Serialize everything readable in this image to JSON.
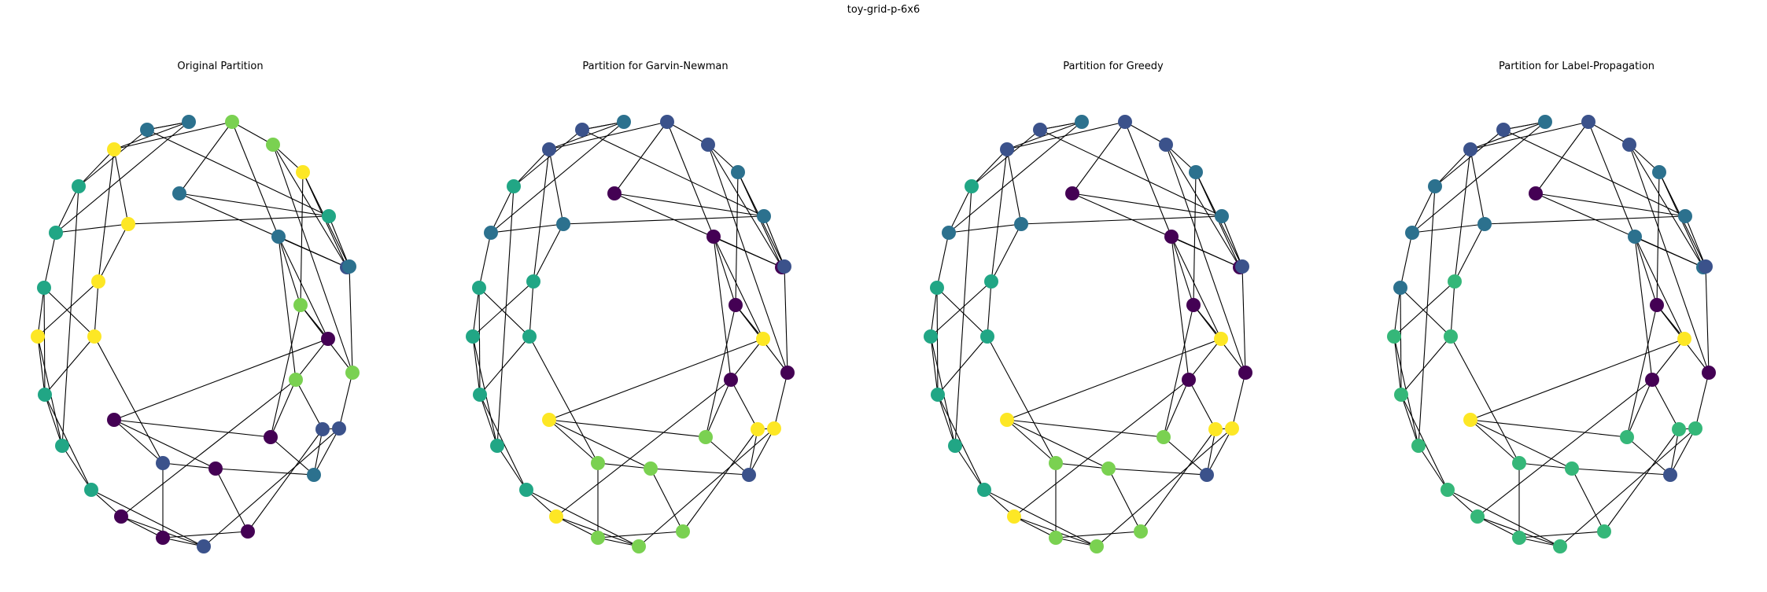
{
  "figure": {
    "title": "toy-grid-p-6x6"
  },
  "colors": {
    "purple": "#440154",
    "indigo": "#3b528b",
    "blue": "#2c718e",
    "teal": "#21a685",
    "mint": "#35b779",
    "lime": "#7ad151",
    "yellow": "#fde725",
    "edge": "#000000"
  },
  "panels": [
    {
      "title": "Original Partition",
      "node_colors": [
        "yellow",
        "yellow",
        "teal",
        "blue",
        "teal",
        "blue",
        "indigo",
        "teal",
        "lime",
        "lime",
        "teal",
        "lime",
        "yellow",
        "yellow",
        "blue",
        "purple",
        "blue",
        "lime",
        "purple",
        "indigo",
        "yellow",
        "teal",
        "indigo",
        "purple",
        "indigo",
        "purple",
        "indigo",
        "purple",
        "yellow",
        "blue",
        "purple",
        "teal",
        "teal",
        "purple",
        "blue",
        "lime"
      ]
    },
    {
      "title": "Partition for Garvin-Newman",
      "node_colors": [
        "indigo",
        "blue",
        "teal",
        "indigo",
        "blue",
        "purple",
        "purple",
        "teal",
        "indigo",
        "indigo",
        "blue",
        "purple",
        "teal",
        "blue",
        "indigo",
        "yellow",
        "purple",
        "purple",
        "yellow",
        "yellow",
        "teal",
        "teal",
        "yellow",
        "lime",
        "lime",
        "lime",
        "lime",
        "lime",
        "teal",
        "blue",
        "lime",
        "teal",
        "teal",
        "yellow",
        "indigo",
        "purple"
      ]
    },
    {
      "title": "Partition for Greedy",
      "node_colors": [
        "indigo",
        "blue",
        "teal",
        "indigo",
        "blue",
        "purple",
        "purple",
        "teal",
        "indigo",
        "indigo",
        "blue",
        "purple",
        "teal",
        "blue",
        "indigo",
        "yellow",
        "purple",
        "purple",
        "yellow",
        "yellow",
        "teal",
        "teal",
        "yellow",
        "lime",
        "lime",
        "lime",
        "lime",
        "lime",
        "teal",
        "blue",
        "lime",
        "teal",
        "teal",
        "yellow",
        "indigo",
        "purple"
      ]
    },
    {
      "title": "Partition for Label-Propagation",
      "node_colors": [
        "indigo",
        "blue",
        "blue",
        "indigo",
        "blue",
        "purple",
        "blue",
        "blue",
        "indigo",
        "indigo",
        "blue",
        "purple",
        "mint",
        "blue",
        "indigo",
        "yellow",
        "blue",
        "purple",
        "yellow",
        "mint",
        "mint",
        "mint",
        "mint",
        "mint",
        "mint",
        "mint",
        "mint",
        "mint",
        "mint",
        "blue",
        "mint",
        "mint",
        "mint",
        "mint",
        "indigo",
        "purple"
      ]
    }
  ]
}
